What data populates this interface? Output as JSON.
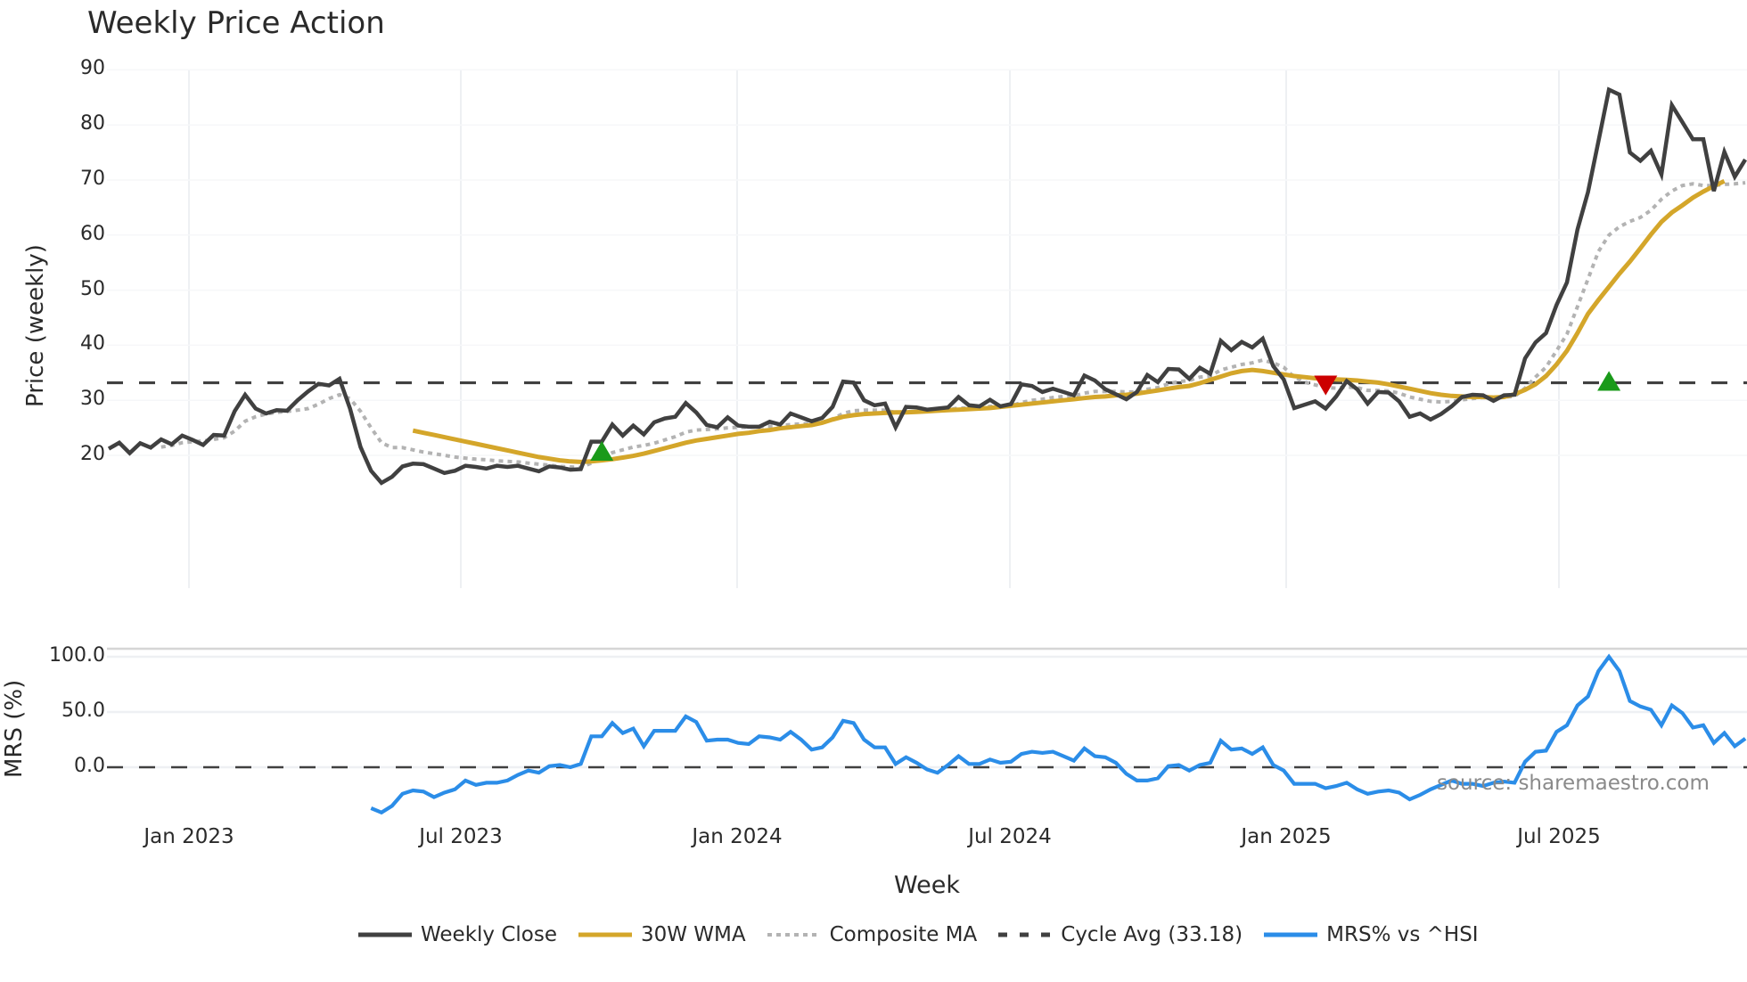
{
  "title": "Weekly Price Action",
  "top_panel": {
    "ylabel": "Price (weekly)",
    "yticks": [
      "90",
      "80",
      "70",
      "60",
      "50",
      "40",
      "30",
      "20"
    ]
  },
  "bottom_panel": {
    "ylabel": "MRS (%)",
    "yticks": [
      "100.0",
      "50.0",
      "0.0"
    ]
  },
  "xaxis": {
    "label": "Week",
    "ticks": [
      "Jan 2023",
      "Jul 2023",
      "Jan 2024",
      "Jul 2024",
      "Jan 2025",
      "Jul 2025"
    ]
  },
  "source": "source: sharemaestro.com",
  "legend": [
    {
      "label": "Weekly Close",
      "color": "#404040",
      "style": "solid"
    },
    {
      "label": "30W WMA",
      "color": "#d4a62a",
      "style": "solid"
    },
    {
      "label": "Composite MA",
      "color": "#b3b3b3",
      "style": "dotted"
    },
    {
      "label": "Cycle Avg (33.18)",
      "color": "#404040",
      "style": "dashed"
    },
    {
      "label": "MRS% vs ^HSI",
      "color": "#2b8de8",
      "style": "solid"
    }
  ],
  "colors": {
    "close": "#404040",
    "wma": "#d4a62a",
    "composite": "#b3b3b3",
    "cycle": "#404040",
    "mrs": "#2b8de8",
    "buy_marker": "#1a9a1a",
    "sell_marker": "#cc0000",
    "grid": "#eef0f3"
  },
  "chart_data": [
    {
      "type": "line",
      "title": "Weekly Price Action",
      "xlabel": "Week",
      "ylabel": "Price (weekly)",
      "ylim": [
        10,
        90
      ],
      "x_tick_labels": [
        "Jan 2023",
        "Jul 2023",
        "Jan 2024",
        "Jul 2024",
        "Jan 2025",
        "Jul 2025"
      ],
      "x_start": "2022-11 (approx)",
      "x_end": "2025-11 (approx)",
      "grid": true,
      "legend_position": "bottom",
      "series": [
        {
          "name": "Weekly Close",
          "values": [
            21.2,
            22.3,
            20.4,
            22.2,
            21.4,
            22.9,
            22.0,
            23.6,
            22.8,
            21.9,
            23.7,
            23.6,
            28.0,
            31.0,
            28.5,
            27.6,
            28.2,
            28.1,
            30.0,
            31.6,
            33.0,
            32.7,
            33.9,
            28.5,
            21.5,
            17.2,
            15.0,
            16.1,
            18.0,
            18.5,
            18.4,
            17.6,
            16.8,
            17.2,
            18.1,
            17.9,
            17.6,
            18.1,
            17.9,
            18.1,
            17.6,
            17.1,
            18.0,
            17.8,
            17.4,
            17.5,
            22.5,
            22.5,
            25.6,
            23.6,
            25.4,
            23.8,
            26.0,
            26.7,
            27.0,
            29.5,
            27.8,
            25.5,
            25.1,
            26.9,
            25.4,
            25.2,
            25.2,
            26.1,
            25.6,
            27.6,
            26.9,
            26.2,
            26.8,
            28.8,
            33.4,
            33.2,
            30.0,
            29.1,
            29.4,
            25.1,
            28.8,
            28.7,
            28.3,
            28.5,
            28.7,
            30.6,
            29.1,
            28.9,
            30.1,
            28.9,
            29.3,
            32.9,
            32.6,
            31.5,
            32.1,
            31.5,
            30.9,
            34.5,
            33.6,
            32.0,
            31.1,
            30.2,
            31.5,
            34.6,
            33.3,
            35.7,
            35.6,
            33.9,
            35.9,
            34.8,
            40.8,
            39.1,
            40.6,
            39.6,
            41.2,
            36.2,
            33.8,
            28.6,
            29.2,
            29.8,
            28.5,
            30.7,
            33.5,
            32.0,
            29.4,
            31.5,
            31.4,
            29.8,
            27.0,
            27.6,
            26.5,
            27.5,
            28.9,
            30.6,
            31.0,
            30.9,
            29.9,
            30.9,
            31.0,
            37.6,
            40.5,
            42.2,
            47.3,
            51.4,
            61.0,
            67.8,
            77.0,
            86.4,
            85.5,
            75.0,
            73.5,
            75.3,
            71.0,
            83.6,
            80.5,
            77.4,
            77.4,
            68.0,
            75.1,
            70.6,
            73.7
          ]
        },
        {
          "name": "30W WMA",
          "values": [
            null,
            null,
            null,
            null,
            null,
            null,
            null,
            null,
            null,
            null,
            null,
            null,
            null,
            null,
            null,
            null,
            null,
            null,
            null,
            null,
            null,
            null,
            null,
            null,
            null,
            null,
            null,
            null,
            null,
            24.5,
            24.1,
            23.7,
            23.3,
            22.9,
            22.5,
            22.1,
            21.7,
            21.3,
            20.9,
            20.5,
            20.1,
            19.7,
            19.4,
            19.1,
            18.9,
            18.8,
            18.9,
            19.1,
            19.3,
            19.6,
            19.9,
            20.3,
            20.8,
            21.3,
            21.8,
            22.3,
            22.7,
            23.0,
            23.3,
            23.6,
            23.9,
            24.1,
            24.4,
            24.6,
            24.9,
            25.1,
            25.3,
            25.5,
            25.9,
            26.5,
            27.0,
            27.3,
            27.5,
            27.6,
            27.7,
            27.8,
            27.8,
            27.9,
            28.0,
            28.1,
            28.2,
            28.3,
            28.4,
            28.5,
            28.6,
            28.8,
            29.0,
            29.2,
            29.4,
            29.6,
            29.8,
            30.0,
            30.2,
            30.4,
            30.6,
            30.7,
            30.9,
            31.0,
            31.2,
            31.5,
            31.8,
            32.1,
            32.4,
            32.6,
            33.1,
            33.7,
            34.3,
            34.9,
            35.3,
            35.5,
            35.3,
            35.0,
            34.7,
            34.4,
            34.2,
            34.0,
            33.9,
            33.8,
            33.7,
            33.6,
            33.4,
            33.2,
            32.9,
            32.5,
            32.1,
            31.7,
            31.3,
            31.0,
            30.8,
            30.7,
            30.6,
            30.6,
            30.5,
            30.6,
            31.1,
            31.9,
            32.9,
            34.4,
            36.5,
            39.0,
            42.2,
            45.7,
            48.2,
            50.6,
            53.0,
            55.2,
            57.6,
            60.1,
            62.4,
            64.1,
            65.4,
            66.8,
            67.9,
            68.9,
            69.8
          ]
        },
        {
          "name": "Composite MA",
          "values": [
            null,
            null,
            null,
            null,
            null,
            21.5,
            21.8,
            22.3,
            22.5,
            22.6,
            22.9,
            23.2,
            24.4,
            26.2,
            27.0,
            27.5,
            27.8,
            28.0,
            28.2,
            28.5,
            29.3,
            30.3,
            31.0,
            30.3,
            28.0,
            25.0,
            22.3,
            21.4,
            21.4,
            21.0,
            20.6,
            20.3,
            20.0,
            19.7,
            19.5,
            19.3,
            19.2,
            19.0,
            18.9,
            18.8,
            18.6,
            18.4,
            18.2,
            18.0,
            17.9,
            17.8,
            18.6,
            19.5,
            20.5,
            21.0,
            21.5,
            21.8,
            22.2,
            22.8,
            23.4,
            24.2,
            24.6,
            24.7,
            24.8,
            25.0,
            25.1,
            25.1,
            25.2,
            25.3,
            25.4,
            25.6,
            25.7,
            25.8,
            26.0,
            26.6,
            27.6,
            28.1,
            28.2,
            28.2,
            28.2,
            27.8,
            27.9,
            28.0,
            28.1,
            28.2,
            28.3,
            28.6,
            28.6,
            28.7,
            28.9,
            28.9,
            29.0,
            29.6,
            30.0,
            30.2,
            30.5,
            30.7,
            30.8,
            31.3,
            31.6,
            31.6,
            31.6,
            31.5,
            31.5,
            32.0,
            32.3,
            33.0,
            33.4,
            33.6,
            34.2,
            34.4,
            35.5,
            36.0,
            36.5,
            36.8,
            37.3,
            36.8,
            36.0,
            34.2,
            33.3,
            32.8,
            32.3,
            32.2,
            32.4,
            32.3,
            31.8,
            31.8,
            31.7,
            31.3,
            30.6,
            30.2,
            29.8,
            29.7,
            29.8,
            30.1,
            30.3,
            30.5,
            30.4,
            30.6,
            30.7,
            32.2,
            34.2,
            36.0,
            39.0,
            42.0,
            47.0,
            52.0,
            57.0,
            60.0,
            61.5,
            62.5,
            63.2,
            64.5,
            66.5,
            68.0,
            69.0,
            69.3,
            69.0,
            69.0,
            69.2,
            69.3,
            69.5
          ]
        },
        {
          "name": "Cycle Avg (33.18)",
          "values": [
            33.18
          ],
          "constant": true
        }
      ],
      "markers": [
        {
          "type": "buy",
          "shape": "triangle-up",
          "week_index": 47,
          "value": 20.5
        },
        {
          "type": "sell",
          "shape": "triangle-down",
          "week_index": 116,
          "value": 33.0
        },
        {
          "type": "buy",
          "shape": "triangle-up",
          "week_index": 143,
          "value": 33.2
        }
      ]
    },
    {
      "type": "line",
      "title": "",
      "xlabel": "Week",
      "ylabel": "MRS (%)",
      "ylim": [
        -45,
        110
      ],
      "y_tick_labels": [
        "100.0",
        "50.0",
        "0.0"
      ],
      "grid": true,
      "series": [
        {
          "name": "MRS% vs ^HSI",
          "values": [
            null,
            null,
            null,
            null,
            null,
            null,
            null,
            null,
            null,
            null,
            null,
            null,
            null,
            null,
            null,
            null,
            null,
            null,
            null,
            null,
            null,
            null,
            null,
            null,
            null,
            -37,
            -41,
            -35,
            -24,
            -21,
            -22,
            -27,
            -23,
            -20,
            -12,
            -16,
            -14,
            -14,
            -12,
            -7,
            -3,
            -5,
            1,
            2,
            0,
            3,
            28,
            28,
            40,
            31,
            35,
            19,
            33,
            33,
            33,
            46,
            41,
            24,
            25,
            25,
            22,
            21,
            28,
            27,
            25,
            32,
            25,
            16,
            18,
            27,
            42,
            40,
            25,
            18,
            18,
            3,
            9,
            4,
            -2,
            -5,
            2,
            10,
            3,
            3,
            7,
            4,
            5,
            12,
            14,
            13,
            14,
            10,
            6,
            17,
            10,
            9,
            4,
            -6,
            -12,
            -12,
            -10,
            1,
            2,
            -3,
            2,
            4,
            24,
            16,
            17,
            12,
            18,
            2,
            -3,
            -15,
            -15,
            -15,
            -19,
            -17,
            -14,
            -20,
            -24,
            -22,
            -21,
            -23,
            -29,
            -25,
            -20,
            -16,
            -12,
            -15,
            -15,
            -17,
            -14,
            -13,
            -14,
            5,
            14,
            15,
            32,
            38,
            56,
            64,
            87,
            100,
            87,
            60,
            55,
            52,
            38,
            56,
            49,
            36,
            38,
            22,
            31,
            19,
            26
          ]
        }
      ],
      "reference_lines": [
        {
          "value": 0,
          "style": "dashed"
        }
      ]
    }
  ]
}
